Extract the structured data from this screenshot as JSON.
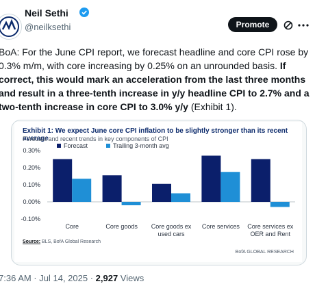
{
  "author": {
    "name": "Neil Sethi",
    "handle": "@neilksethi"
  },
  "header": {
    "promote_label": "Promote",
    "icons": [
      "verified-icon",
      "grok-icon",
      "more-icon"
    ]
  },
  "tweet": {
    "text_plain": "BoA: For the June CPI report, we forecast headline and core CPI rose by 0.3% m/m, with core increasing by 0.25% on an unrounded basis. ",
    "text_bold": "If correct, this would mark an acceleration from the last three months and result in a three-tenth increase in y/y headline CPI to 2.7% and a two-tenth increase in core CPI to 3.0% y/y",
    "text_tail": " (Exhibit 1)."
  },
  "chart": {
    "title": "Exhibit 1: We expect June core CPI inflation to be slightly stronger than its recent average",
    "subtitle": "Forecast and recent trends in key components of CPI",
    "source_label": "Source:",
    "source_text": " BLS, BofA Global Research",
    "brand": "BofA GLOBAL RESEARCH"
  },
  "chart_data": {
    "type": "bar",
    "categories": [
      "Core",
      "Core goods",
      "Core goods ex used cars",
      "Core services",
      "Core services ex OER and Rent"
    ],
    "series": [
      {
        "name": "Forecast",
        "values": [
          0.25,
          0.155,
          0.105,
          0.27,
          0.25
        ],
        "color": "#0b1f6b"
      },
      {
        "name": "Trailing 3-month avg",
        "values": [
          0.135,
          -0.02,
          0.05,
          0.175,
          -0.03
        ],
        "color": "#1f8fd6"
      }
    ],
    "yticks": [
      "0.30%",
      "0.20%",
      "0.10%",
      "0.00%",
      "-0.10%"
    ],
    "ylim": [
      -0.1,
      0.3
    ],
    "xlabel": "",
    "ylabel": "",
    "legend": "top-left",
    "grid": false
  },
  "meta": {
    "time": "7:36 AM · Jul 14, 2025 · ",
    "views_count": "2,927",
    "views_label": " Views"
  }
}
